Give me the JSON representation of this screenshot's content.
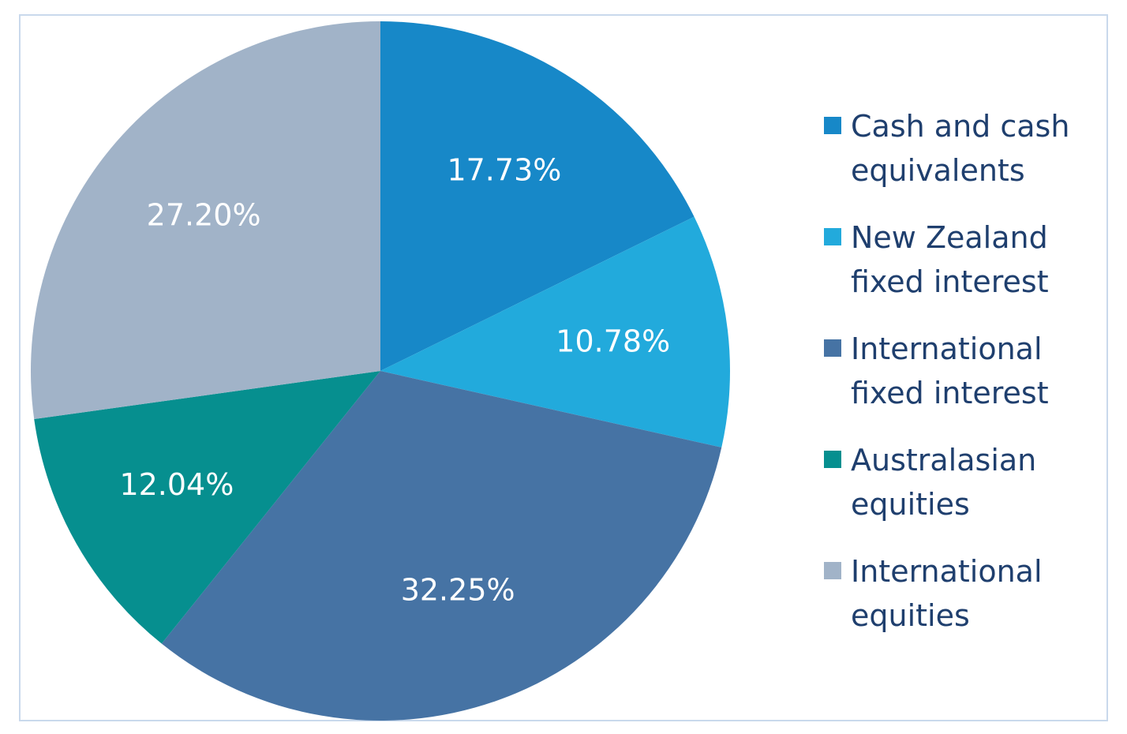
{
  "chart_data": {
    "type": "pie",
    "title": "",
    "slices": [
      {
        "name": "Cash and cash\nequivalents",
        "value": 17.73,
        "label": "17.73%",
        "color": "#1788c8"
      },
      {
        "name": "New Zealand\nfixed interest",
        "value": 10.78,
        "label": "10.78%",
        "color": "#22aadc"
      },
      {
        "name": "International\nfixed interest",
        "value": 32.25,
        "label": "32.25%",
        "color": "#4673a4"
      },
      {
        "name": "Australasian\nequities",
        "value": 12.04,
        "label": "12.04%",
        "color": "#068f8f"
      },
      {
        "name": "International\nequities",
        "value": 27.2,
        "label": "27.20%",
        "color": "#a1b3c8"
      }
    ],
    "start": "12 o'clock",
    "direction": "clockwise",
    "legend_position": "right"
  }
}
